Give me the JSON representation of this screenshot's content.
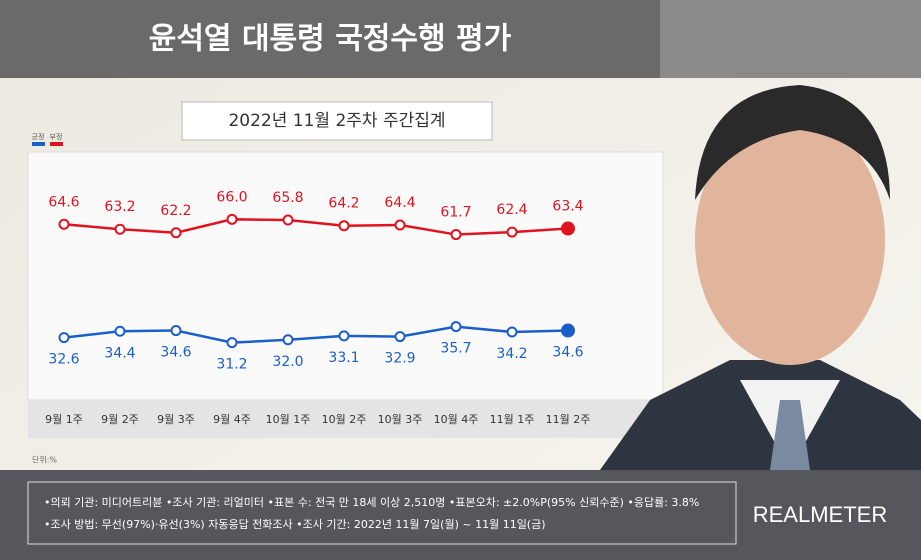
{
  "chart_data": {
    "type": "line",
    "title": "윤석열 대통령 국정수행 평가",
    "subtitle": "2022년 11월 2주차 주간집계",
    "categories": [
      "9월 1주",
      "9월 2주",
      "9월 3주",
      "9월 4주",
      "10월 1주",
      "10월 2주",
      "10월 3주",
      "10월 4주",
      "11월 1주",
      "11월 2주"
    ],
    "series": [
      {
        "name": "긍정",
        "color": "#1a5fc8",
        "values": [
          32.6,
          34.4,
          34.6,
          31.2,
          32.0,
          33.1,
          32.9,
          35.7,
          34.2,
          34.6
        ],
        "value_labels": [
          "32.6",
          "34.4",
          "34.6",
          "31.2",
          "32.0",
          "33.1",
          "32.9",
          "35.7",
          "34.2",
          "34.6"
        ]
      },
      {
        "name": "부정",
        "color": "#e0141e",
        "values": [
          64.6,
          63.2,
          62.2,
          66.0,
          65.8,
          64.2,
          64.4,
          61.7,
          62.4,
          63.4
        ],
        "value_labels": [
          "64.6",
          "63.2",
          "62.2",
          "66.0",
          "65.8",
          "64.2",
          "64.4",
          "61.7",
          "62.4",
          "63.4"
        ]
      }
    ],
    "ylim": [
      15,
      85
    ],
    "unit_note": "단위:%",
    "notes": [
      "•의뢰 기관: 미디어트리뷴 •조사 기관: 리얼미터 •표본 수: 전국 만 18세 이상 2,510명 •표본오차: ±2.0%P(95% 신뢰수준) •응답률: 3.8%",
      "•조사 방법: 무선(97%)·유선(3%) 자동응답 전화조사 •조사 기간: 2022년 11월 7일(월) ~ 11월 11일(금)"
    ],
    "brand": "REALMETER"
  }
}
